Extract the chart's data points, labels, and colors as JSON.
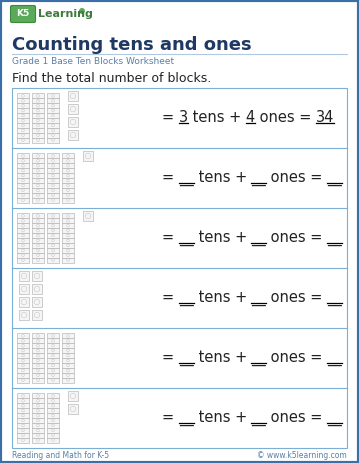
{
  "title": "Counting tens and ones",
  "subtitle": "Grade 1 Base Ten Blocks Worksheet",
  "instruction": "Find the total number of blocks.",
  "bg_color": "#ffffff",
  "border_color": "#7bafd4",
  "title_color": "#1f3864",
  "subtitle_color": "#5b7fa6",
  "text_color": "#222222",
  "footer_color": "#5b7fa6",
  "footer_left": "Reading and Math for K-5",
  "footer_right": "© www.k5learning.com",
  "rows": [
    {
      "tens": 3,
      "ones": 4,
      "show_answer": true,
      "tens_ans": "3",
      "ones_ans": "4",
      "total": "34"
    },
    {
      "tens": 4,
      "ones": 1,
      "show_answer": false,
      "tens_ans": "",
      "ones_ans": "",
      "total": ""
    },
    {
      "tens": 4,
      "ones": 1,
      "show_answer": false,
      "tens_ans": "",
      "ones_ans": "",
      "total": ""
    },
    {
      "tens": 0,
      "ones": 8,
      "show_answer": false,
      "tens_ans": "",
      "ones_ans": "",
      "total": ""
    },
    {
      "tens": 4,
      "ones": 0,
      "show_answer": false,
      "tens_ans": "",
      "ones_ans": "",
      "total": ""
    },
    {
      "tens": 3,
      "ones": 2,
      "show_answer": false,
      "tens_ans": "",
      "ones_ans": "",
      "total": ""
    }
  ]
}
